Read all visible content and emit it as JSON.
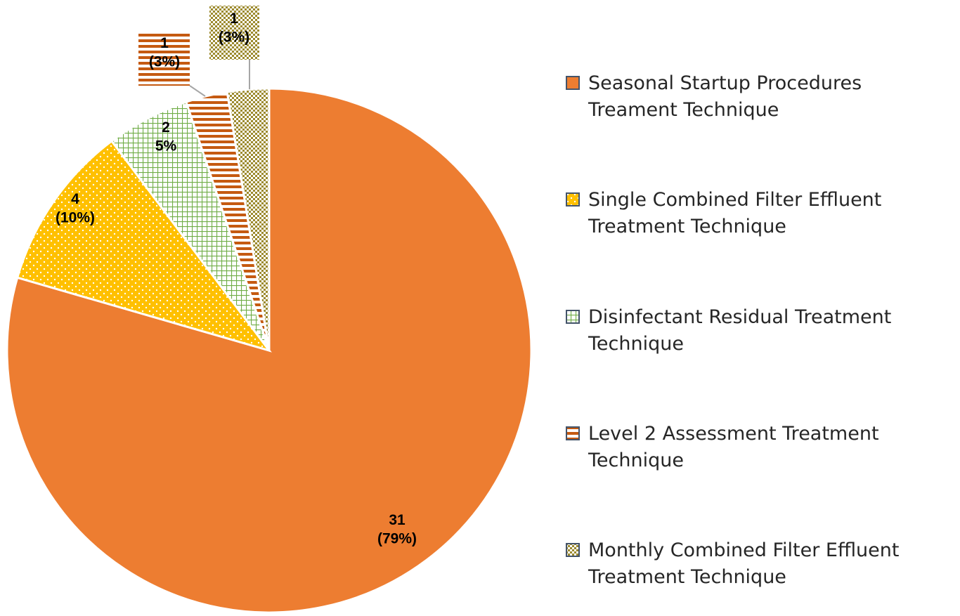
{
  "chart_data": {
    "type": "pie",
    "categories": [
      "Seasonal Startup Procedures Treament Technique",
      "Single Combined Filter Effluent Treatment Technique",
      "Disinfectant Residual Treatment Technique",
      "Level 2 Assessment Treatment Technique",
      "Monthly Combined Filter Effluent Treatment Technique"
    ],
    "values": [
      31,
      4,
      2,
      1,
      1
    ],
    "value_labels": [
      "31\n(79%)",
      "4\n(10%)",
      "2\n5%",
      "1\n(3%)",
      "1\n(3%)"
    ],
    "colors": [
      "#ed7d31",
      "#ffc000",
      "#70ad47",
      "#c55a11",
      "#9c8a2e"
    ],
    "legend": "right"
  }
}
